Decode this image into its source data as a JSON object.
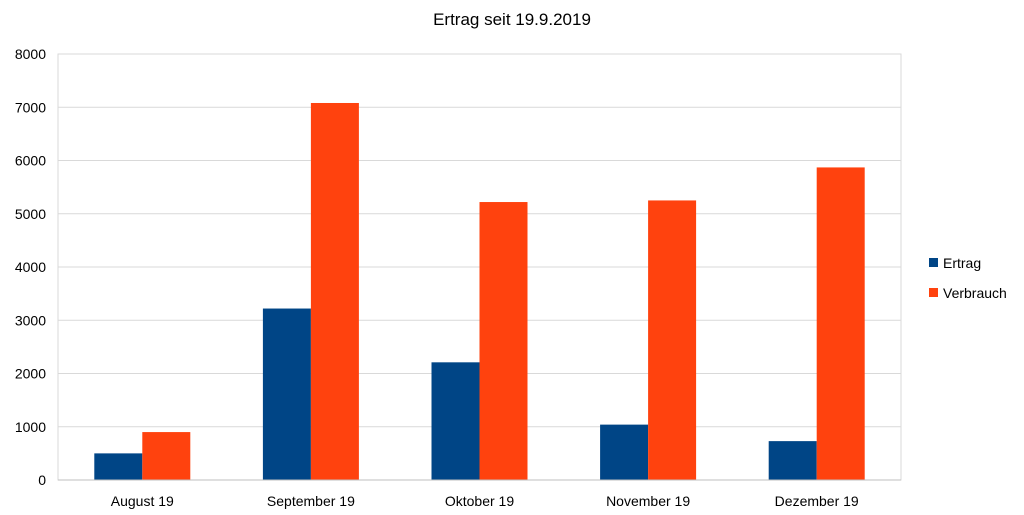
{
  "chart_data": {
    "type": "bar",
    "title": "Ertrag seit 19.9.2019",
    "xlabel": "",
    "ylabel": "",
    "categories": [
      "August 19",
      "September 19",
      "Oktober 19",
      "November 19",
      "Dezember 19"
    ],
    "series": [
      {
        "name": "Ertrag",
        "color": "#004586",
        "values": [
          500,
          3220,
          2210,
          1040,
          730
        ]
      },
      {
        "name": "Verbrauch",
        "color": "#ff420e",
        "values": [
          900,
          7080,
          5220,
          5250,
          5870
        ]
      }
    ],
    "ylim": [
      0,
      8000
    ],
    "yticks": [
      0,
      1000,
      2000,
      3000,
      4000,
      5000,
      6000,
      7000,
      8000
    ],
    "grid": true,
    "legend_position": "right"
  }
}
